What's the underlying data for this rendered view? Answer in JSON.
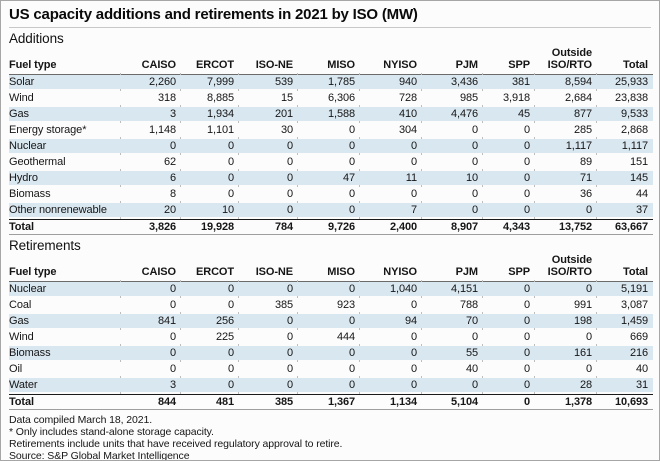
{
  "title": "US capacity additions and retirements in 2021 by ISO (MW)",
  "table": {
    "row_header": "Fuel type",
    "columns": [
      "CAISO",
      "ERCOT",
      "ISO-NE",
      "MISO",
      "NYISO",
      "PJM",
      "SPP",
      "Outside ISO/RTO",
      "Total"
    ],
    "sections": [
      {
        "label": "Additions",
        "rows": [
          {
            "fuel": "Solar",
            "values": [
              "2,260",
              "7,999",
              "539",
              "1,785",
              "940",
              "3,436",
              "381",
              "8,594",
              "25,933"
            ]
          },
          {
            "fuel": "Wind",
            "values": [
              "318",
              "8,885",
              "15",
              "6,306",
              "728",
              "985",
              "3,918",
              "2,684",
              "23,838"
            ]
          },
          {
            "fuel": "Gas",
            "values": [
              "3",
              "1,934",
              "201",
              "1,588",
              "410",
              "4,476",
              "45",
              "877",
              "9,533"
            ]
          },
          {
            "fuel": "Energy storage*",
            "values": [
              "1,148",
              "1,101",
              "30",
              "0",
              "304",
              "0",
              "0",
              "285",
              "2,868"
            ]
          },
          {
            "fuel": "Nuclear",
            "values": [
              "0",
              "0",
              "0",
              "0",
              "0",
              "0",
              "0",
              "1,117",
              "1,117"
            ]
          },
          {
            "fuel": "Geothermal",
            "values": [
              "62",
              "0",
              "0",
              "0",
              "0",
              "0",
              "0",
              "89",
              "151"
            ]
          },
          {
            "fuel": "Hydro",
            "values": [
              "6",
              "0",
              "0",
              "47",
              "11",
              "10",
              "0",
              "71",
              "145"
            ]
          },
          {
            "fuel": "Biomass",
            "values": [
              "8",
              "0",
              "0",
              "0",
              "0",
              "0",
              "0",
              "36",
              "44"
            ]
          },
          {
            "fuel": "Other nonrenewable",
            "values": [
              "20",
              "10",
              "0",
              "0",
              "7",
              "0",
              "0",
              "0",
              "37"
            ]
          }
        ],
        "total": {
          "fuel": "Total",
          "values": [
            "3,826",
            "19,928",
            "784",
            "9,726",
            "2,400",
            "8,907",
            "4,343",
            "13,752",
            "63,667"
          ]
        }
      },
      {
        "label": "Retirements",
        "rows": [
          {
            "fuel": "Nuclear",
            "values": [
              "0",
              "0",
              "0",
              "0",
              "1,040",
              "4,151",
              "0",
              "0",
              "5,191"
            ]
          },
          {
            "fuel": "Coal",
            "values": [
              "0",
              "0",
              "385",
              "923",
              "0",
              "788",
              "0",
              "991",
              "3,087"
            ]
          },
          {
            "fuel": "Gas",
            "values": [
              "841",
              "256",
              "0",
              "0",
              "94",
              "70",
              "0",
              "198",
              "1,459"
            ]
          },
          {
            "fuel": "Wind",
            "values": [
              "0",
              "225",
              "0",
              "444",
              "0",
              "0",
              "0",
              "0",
              "669"
            ]
          },
          {
            "fuel": "Biomass",
            "values": [
              "0",
              "0",
              "0",
              "0",
              "0",
              "55",
              "0",
              "161",
              "216"
            ]
          },
          {
            "fuel": "Oil",
            "values": [
              "0",
              "0",
              "0",
              "0",
              "0",
              "40",
              "0",
              "0",
              "40"
            ]
          },
          {
            "fuel": "Water",
            "values": [
              "3",
              "0",
              "0",
              "0",
              "0",
              "0",
              "0",
              "28",
              "31"
            ]
          }
        ],
        "total": {
          "fuel": "Total",
          "values": [
            "844",
            "481",
            "385",
            "1,367",
            "1,134",
            "5,104",
            "0",
            "1,378",
            "10,693"
          ]
        }
      }
    ]
  },
  "footnotes": [
    "Data compiled March 18, 2021.",
    "* Only includes stand-alone storage capacity.",
    "Retirements include units that have received regulatory approval to retire.",
    "Source: S&P Global Market Intelligence"
  ],
  "colors": {
    "stripe": "#d9e7f0",
    "header_rule": "#6b6b6b",
    "total_rule_top": "#1a1a1a",
    "total_rule_bottom": "#9e9e9e",
    "frame_border": "#a6a6a6",
    "text": "#111111"
  },
  "chart_data": [
    {
      "type": "table",
      "title": "US capacity additions and retirements in 2021 by ISO (MW) — Additions",
      "columns": [
        "Fuel type",
        "CAISO",
        "ERCOT",
        "ISO-NE",
        "MISO",
        "NYISO",
        "PJM",
        "SPP",
        "Outside ISO/RTO",
        "Total"
      ],
      "rows": [
        [
          "Solar",
          2260,
          7999,
          539,
          1785,
          940,
          3436,
          381,
          8594,
          25933
        ],
        [
          "Wind",
          318,
          8885,
          15,
          6306,
          728,
          985,
          3918,
          2684,
          23838
        ],
        [
          "Gas",
          3,
          1934,
          201,
          1588,
          410,
          4476,
          45,
          877,
          9533
        ],
        [
          "Energy storage*",
          1148,
          1101,
          30,
          0,
          304,
          0,
          0,
          285,
          2868
        ],
        [
          "Nuclear",
          0,
          0,
          0,
          0,
          0,
          0,
          0,
          1117,
          1117
        ],
        [
          "Geothermal",
          62,
          0,
          0,
          0,
          0,
          0,
          0,
          89,
          151
        ],
        [
          "Hydro",
          6,
          0,
          0,
          47,
          11,
          10,
          0,
          71,
          145
        ],
        [
          "Biomass",
          8,
          0,
          0,
          0,
          0,
          0,
          0,
          36,
          44
        ],
        [
          "Other nonrenewable",
          20,
          10,
          0,
          0,
          7,
          0,
          0,
          0,
          37
        ],
        [
          "Total",
          3826,
          19928,
          784,
          9726,
          2400,
          8907,
          4343,
          13752,
          63667
        ]
      ]
    },
    {
      "type": "table",
      "title": "US capacity additions and retirements in 2021 by ISO (MW) — Retirements",
      "columns": [
        "Fuel type",
        "CAISO",
        "ERCOT",
        "ISO-NE",
        "MISO",
        "NYISO",
        "PJM",
        "SPP",
        "Outside ISO/RTO",
        "Total"
      ],
      "rows": [
        [
          "Nuclear",
          0,
          0,
          0,
          0,
          1040,
          4151,
          0,
          0,
          5191
        ],
        [
          "Coal",
          0,
          0,
          385,
          923,
          0,
          788,
          0,
          991,
          3087
        ],
        [
          "Gas",
          841,
          256,
          0,
          0,
          94,
          70,
          0,
          198,
          1459
        ],
        [
          "Wind",
          0,
          225,
          0,
          444,
          0,
          0,
          0,
          0,
          669
        ],
        [
          "Biomass",
          0,
          0,
          0,
          0,
          0,
          55,
          0,
          161,
          216
        ],
        [
          "Oil",
          0,
          0,
          0,
          0,
          0,
          40,
          0,
          0,
          40
        ],
        [
          "Water",
          3,
          0,
          0,
          0,
          0,
          0,
          0,
          28,
          31
        ],
        [
          "Total",
          844,
          481,
          385,
          1367,
          1134,
          5104,
          0,
          1378,
          10693
        ]
      ]
    }
  ]
}
